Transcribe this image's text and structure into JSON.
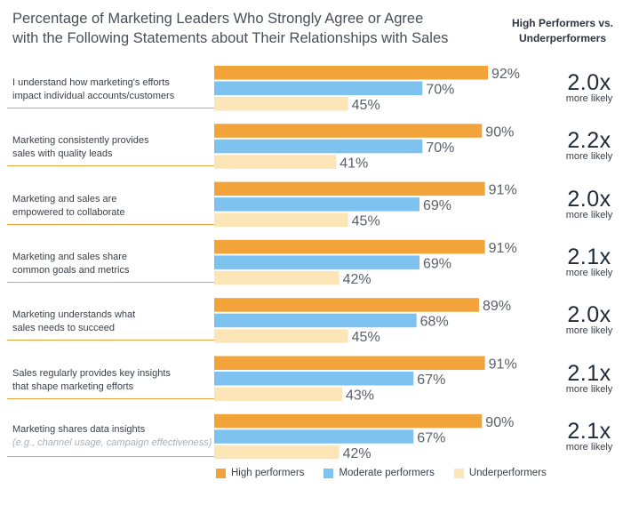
{
  "title_line1": "Percentage of Marketing Leaders Who Strongly Agree or Agree",
  "title_line2": "with the Following Statements about Their Relationships with Sales",
  "comparison_header_line1": "High Performers vs.",
  "comparison_header_line2": "Underperformers",
  "multiplier_suffix": "x",
  "multiplier_sub": "more likely",
  "colors": {
    "high": "#f2a33a",
    "moderate": "#7ec3f0",
    "under": "#fce6b8",
    "divider": "#f0a33c"
  },
  "legend": [
    {
      "label": "High performers",
      "color": "#f2a33a"
    },
    {
      "label": "Moderate performers",
      "color": "#7ec3f0"
    },
    {
      "label": "Underperformers",
      "color": "#fce6b8"
    }
  ],
  "chart_data": {
    "type": "bar",
    "orientation": "horizontal",
    "title": "Percentage of Marketing Leaders Who Strongly Agree or Agree with the Following Statements about Their Relationships with Sales",
    "xlim": [
      0,
      100
    ],
    "grid": false,
    "legend_position": "bottom",
    "categories": [
      {
        "line1": "I understand how marketing's efforts",
        "line2": "impact individual accounts/customers",
        "sub": "",
        "multiplier": "2.0"
      },
      {
        "line1": "Marketing consistently provides",
        "line2": "sales with quality leads",
        "sub": "",
        "multiplier": "2.2"
      },
      {
        "line1": "Marketing and sales are",
        "line2": "empowered to collaborate",
        "sub": "",
        "multiplier": "2.0"
      },
      {
        "line1": "Marketing and sales share",
        "line2": "common goals and metrics",
        "sub": "",
        "multiplier": "2.1"
      },
      {
        "line1": "Marketing understands what",
        "line2": "sales needs to succeed",
        "sub": "",
        "multiplier": "2.0"
      },
      {
        "line1": "Sales regularly provides key insights",
        "line2": "that shape marketing efforts",
        "sub": "",
        "multiplier": "2.1"
      },
      {
        "line1": "Marketing shares data insights",
        "line2": "",
        "sub": "(e.g., channel usage, campaign effectiveness)",
        "multiplier": "2.1"
      }
    ],
    "series": [
      {
        "name": "High performers",
        "values": [
          92,
          90,
          91,
          91,
          89,
          91,
          90
        ]
      },
      {
        "name": "Moderate performers",
        "values": [
          70,
          70,
          69,
          69,
          68,
          67,
          67
        ]
      },
      {
        "name": "Underperformers",
        "values": [
          45,
          41,
          45,
          42,
          45,
          43,
          42
        ]
      }
    ],
    "value_suffix": "%"
  }
}
